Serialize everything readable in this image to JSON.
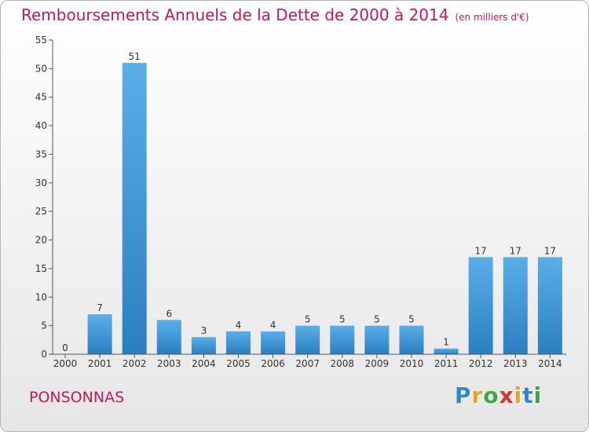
{
  "header": {
    "title": "Remboursements Annuels de la Dette de 2000 à 2014",
    "unit": "(en milliers d'€)"
  },
  "footer": {
    "commune": "PONSONNAS",
    "logo": "Proxiti"
  },
  "colors": {
    "title": "#c2185b",
    "bar_light": "#5aaee8",
    "bar_dark": "#2a7fc0"
  },
  "chart_data": {
    "type": "bar",
    "title": "Remboursements Annuels de la Dette de 2000 à 2014",
    "ylabel": "",
    "xlabel": "",
    "categories": [
      "2000",
      "2001",
      "2002",
      "2003",
      "2004",
      "2005",
      "2006",
      "2007",
      "2008",
      "2009",
      "2010",
      "2011",
      "2012",
      "2013",
      "2014"
    ],
    "values": [
      0,
      7,
      51,
      6,
      3,
      4,
      4,
      5,
      5,
      5,
      5,
      1,
      17,
      17,
      17
    ],
    "ylim": [
      0,
      55
    ],
    "yticks": [
      0,
      5,
      10,
      15,
      20,
      25,
      30,
      35,
      40,
      45,
      50,
      55
    ],
    "grid": false,
    "data_labels": true
  }
}
